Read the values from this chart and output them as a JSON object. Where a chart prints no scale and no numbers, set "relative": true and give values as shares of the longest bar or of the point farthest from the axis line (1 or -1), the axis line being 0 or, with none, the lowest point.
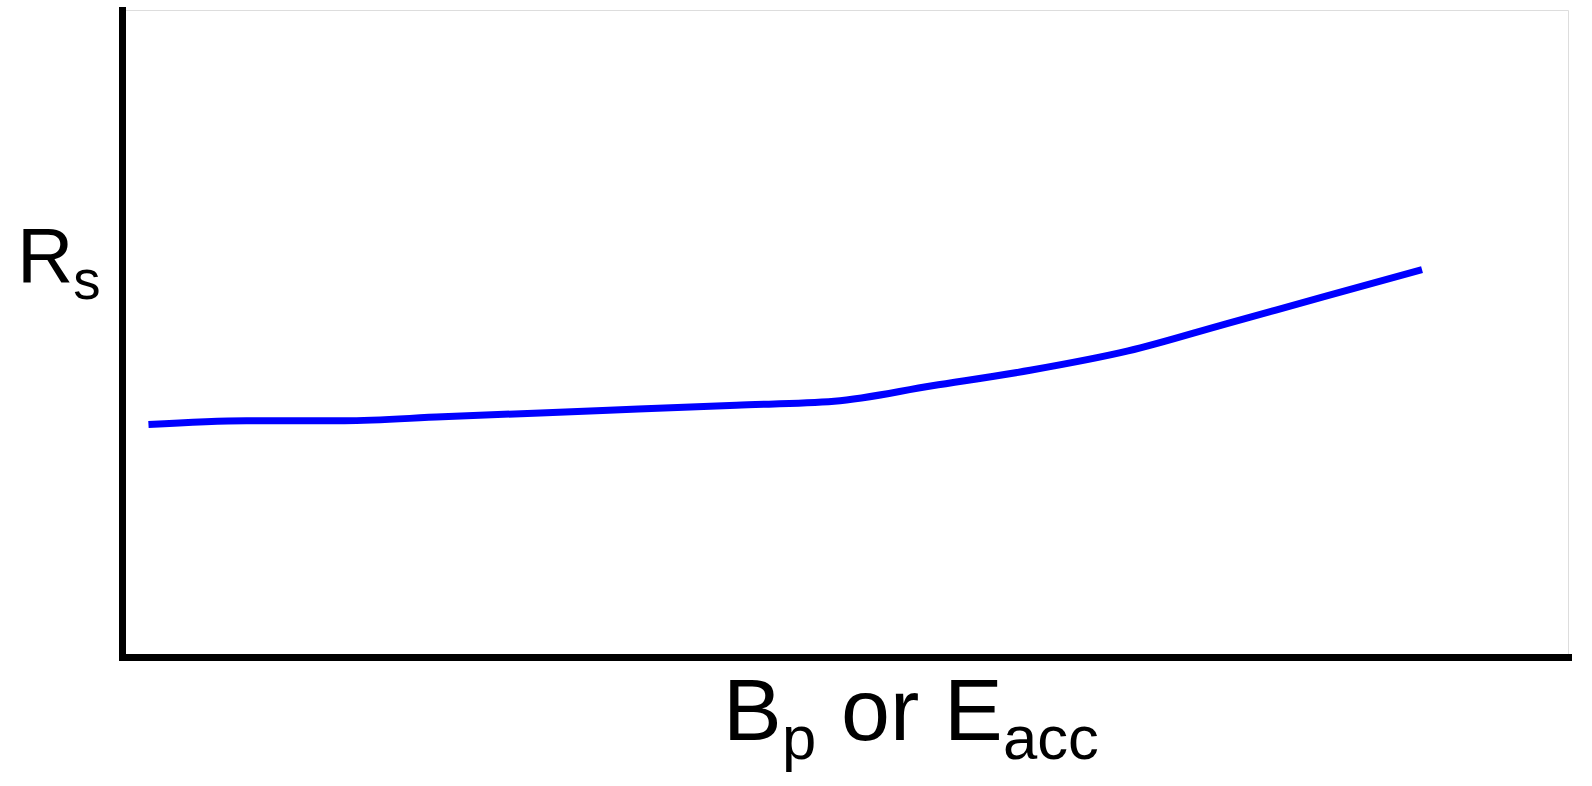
{
  "chart_data": {
    "type": "line",
    "relative": true,
    "xlabel": "B$_{p}$ or E$_{acc}$",
    "ylabel": "R$_{s}$",
    "categories": [
      null,
      null,
      null,
      null,
      null,
      null,
      null,
      null,
      null,
      null,
      null,
      null,
      null,
      null
    ],
    "series": [
      {
        "color": "#0000ff",
        "values": [
          0.6,
          0.61,
          0.61,
          0.62,
          0.63,
          0.64,
          0.65,
          0.66,
          0.7,
          0.74,
          0.79,
          0.86,
          0.93,
          1.0
        ]
      }
    ],
    "grid": false,
    "marker": "none",
    "line_style": "solid"
  }
}
